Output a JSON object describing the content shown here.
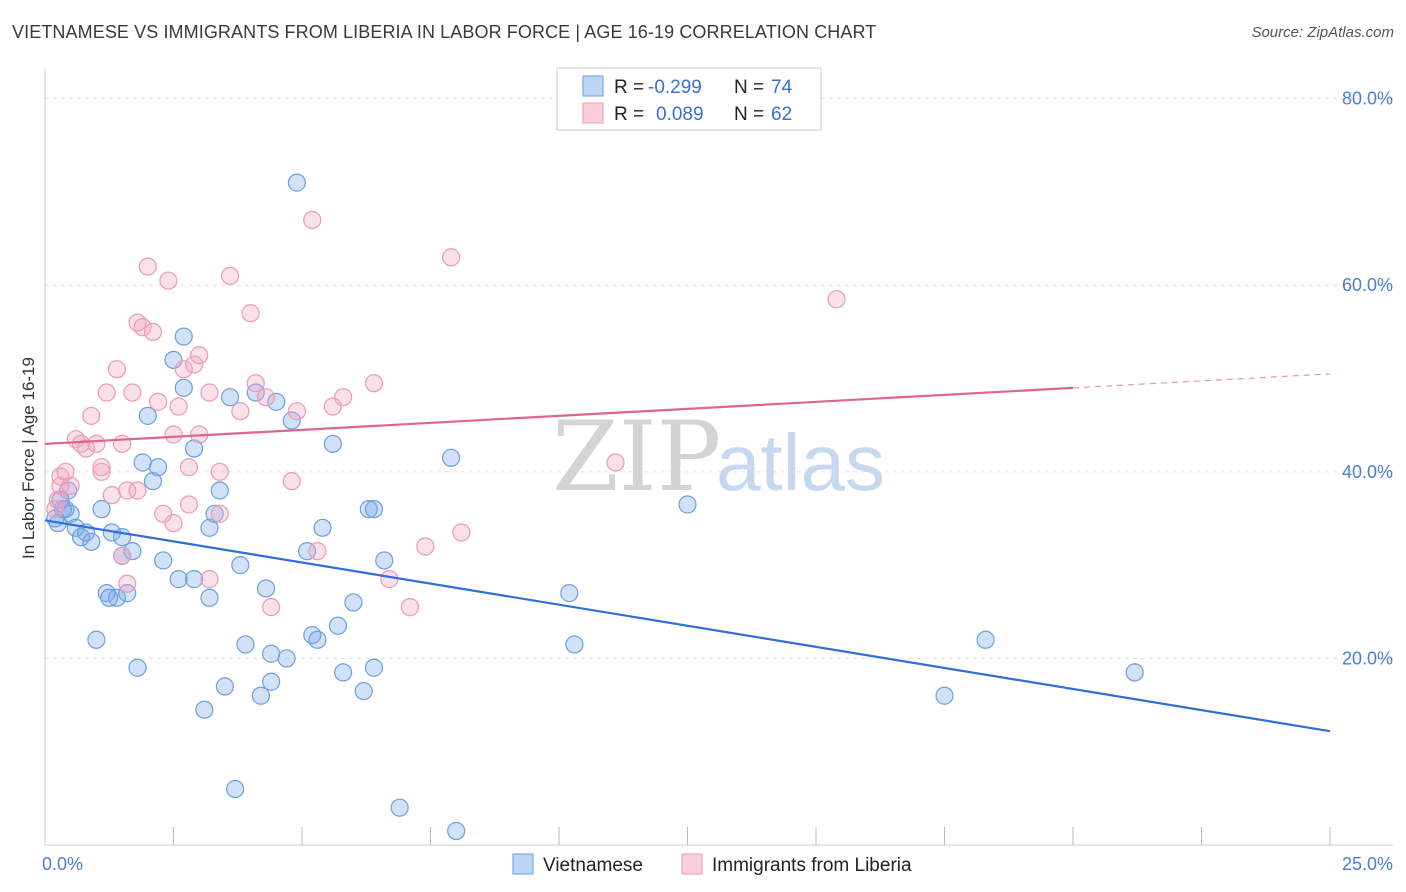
{
  "title": "VIETNAMESE VS IMMIGRANTS FROM LIBERIA IN LABOR FORCE | AGE 16-19 CORRELATION CHART",
  "source": "Source: ZipAtlas.com",
  "watermark": {
    "zip": "ZIP",
    "atlas": "atlas"
  },
  "colors": {
    "blue": "#7aaae8",
    "blue_line": "#2f6fd6",
    "pink": "#f1a7bf",
    "pink_line": "#e0648e",
    "axis_text": "#4a7fd0"
  },
  "legend": {
    "r_label": "R =",
    "n_label": "N =",
    "rows": [
      {
        "r": "-0.299",
        "n": "74"
      },
      {
        "r": "0.089",
        "n": "62"
      }
    ]
  },
  "chart_data": {
    "type": "scatter",
    "title": "VIETNAMESE VS IMMIGRANTS FROM LIBERIA IN LABOR FORCE | AGE 16-19 CORRELATION CHART",
    "xlabel": "",
    "ylabel": "In Labor Force | Age 16-19",
    "xlim": [
      0,
      25
    ],
    "ylim": [
      0,
      82
    ],
    "x_tick_labels": [
      "0.0%",
      "25.0%"
    ],
    "y_ticks": [
      20,
      40,
      60,
      80
    ],
    "y_tick_labels": [
      "20.0%",
      "40.0%",
      "60.0%",
      "80.0%"
    ],
    "grid": true,
    "legend_position": "top-center",
    "series": [
      {
        "name": "Vietnamese",
        "color": "#7aaae8",
        "points": [
          [
            0.2,
            35
          ],
          [
            0.3,
            37
          ],
          [
            0.4,
            36
          ],
          [
            0.5,
            35.5
          ],
          [
            0.6,
            34
          ],
          [
            0.7,
            33
          ],
          [
            0.8,
            33.5
          ],
          [
            0.9,
            32.5
          ],
          [
            1.0,
            22
          ],
          [
            1.1,
            36
          ],
          [
            1.2,
            27
          ],
          [
            1.3,
            33.5
          ],
          [
            1.4,
            26.5
          ],
          [
            1.5,
            31
          ],
          [
            1.5,
            33
          ],
          [
            1.6,
            27
          ],
          [
            1.7,
            31.5
          ],
          [
            1.8,
            19
          ],
          [
            1.9,
            41
          ],
          [
            2.0,
            46
          ],
          [
            2.1,
            39
          ],
          [
            2.2,
            40.5
          ],
          [
            2.3,
            30.5
          ],
          [
            2.5,
            52
          ],
          [
            2.6,
            28.5
          ],
          [
            2.7,
            49
          ],
          [
            2.7,
            54.5
          ],
          [
            2.9,
            28.5
          ],
          [
            2.9,
            42.5
          ],
          [
            3.1,
            14.5
          ],
          [
            3.2,
            34
          ],
          [
            3.2,
            26.5
          ],
          [
            3.3,
            35.5
          ],
          [
            3.4,
            38
          ],
          [
            3.5,
            17
          ],
          [
            3.6,
            48
          ],
          [
            3.7,
            6
          ],
          [
            3.8,
            30
          ],
          [
            3.9,
            21.5
          ],
          [
            4.1,
            48.5
          ],
          [
            4.2,
            16
          ],
          [
            4.3,
            27.5
          ],
          [
            4.4,
            20.5
          ],
          [
            4.4,
            17.5
          ],
          [
            4.5,
            47.5
          ],
          [
            4.7,
            20
          ],
          [
            4.8,
            45.5
          ],
          [
            4.9,
            71
          ],
          [
            5.1,
            31.5
          ],
          [
            5.2,
            22.5
          ],
          [
            5.3,
            22
          ],
          [
            5.4,
            34
          ],
          [
            5.6,
            43
          ],
          [
            5.7,
            23.5
          ],
          [
            5.8,
            18.5
          ],
          [
            6.0,
            26
          ],
          [
            6.2,
            16.5
          ],
          [
            6.3,
            36
          ],
          [
            6.4,
            36
          ],
          [
            6.4,
            19
          ],
          [
            6.6,
            30.5
          ],
          [
            6.9,
            4
          ],
          [
            7.9,
            41.5
          ],
          [
            8.0,
            1.5
          ],
          [
            10.2,
            27
          ],
          [
            10.3,
            21.5
          ],
          [
            12.5,
            36.5
          ],
          [
            17.5,
            16
          ],
          [
            18.3,
            22
          ],
          [
            21.2,
            18.5
          ],
          [
            0.25,
            34.5
          ],
          [
            0.45,
            38
          ],
          [
            0.35,
            36
          ],
          [
            1.25,
            26.5
          ]
        ]
      },
      {
        "name": "Immigrants from Liberia",
        "color": "#f1a7bf",
        "points": [
          [
            0.2,
            36
          ],
          [
            0.3,
            38.5
          ],
          [
            0.3,
            39.5
          ],
          [
            0.4,
            40
          ],
          [
            0.5,
            38.5
          ],
          [
            0.6,
            43.5
          ],
          [
            0.7,
            43
          ],
          [
            0.8,
            42.5
          ],
          [
            0.9,
            46
          ],
          [
            1.0,
            43
          ],
          [
            1.1,
            40
          ],
          [
            1.1,
            40.5
          ],
          [
            1.2,
            48.5
          ],
          [
            1.3,
            37.5
          ],
          [
            1.4,
            51
          ],
          [
            1.5,
            43
          ],
          [
            1.5,
            31
          ],
          [
            1.6,
            38
          ],
          [
            1.6,
            28
          ],
          [
            1.7,
            48.5
          ],
          [
            1.8,
            56
          ],
          [
            1.8,
            38
          ],
          [
            1.9,
            55.5
          ],
          [
            2.0,
            62
          ],
          [
            2.1,
            55
          ],
          [
            2.2,
            47.5
          ],
          [
            2.3,
            35.5
          ],
          [
            2.4,
            60.5
          ],
          [
            2.5,
            34.5
          ],
          [
            2.5,
            44
          ],
          [
            2.6,
            47
          ],
          [
            2.7,
            51
          ],
          [
            2.8,
            40.5
          ],
          [
            2.8,
            36.5
          ],
          [
            2.9,
            51.5
          ],
          [
            3.0,
            44
          ],
          [
            3.0,
            52.5
          ],
          [
            3.2,
            48.5
          ],
          [
            3.2,
            28.5
          ],
          [
            3.4,
            40
          ],
          [
            3.4,
            35.5
          ],
          [
            3.6,
            61
          ],
          [
            3.8,
            46.5
          ],
          [
            4.0,
            57
          ],
          [
            4.1,
            49.5
          ],
          [
            4.3,
            48
          ],
          [
            4.4,
            25.5
          ],
          [
            4.8,
            39
          ],
          [
            4.9,
            46.5
          ],
          [
            5.2,
            67
          ],
          [
            5.3,
            31.5
          ],
          [
            5.6,
            47
          ],
          [
            5.8,
            48
          ],
          [
            6.4,
            49.5
          ],
          [
            6.7,
            28.5
          ],
          [
            7.1,
            25.5
          ],
          [
            7.4,
            32
          ],
          [
            7.9,
            63
          ],
          [
            8.1,
            33.5
          ],
          [
            11.1,
            41
          ],
          [
            15.4,
            58.5
          ],
          [
            0.25,
            37
          ]
        ]
      }
    ],
    "trend_lines": [
      {
        "series": "Vietnamese",
        "x": [
          0,
          25
        ],
        "y": [
          34.8,
          12.2
        ]
      },
      {
        "series": "Immigrants from Liberia",
        "x": [
          0,
          20
        ],
        "y": [
          43,
          49
        ],
        "dashed_extension": {
          "x": [
            20,
            25
          ],
          "y": [
            49,
            50.5
          ]
        }
      }
    ]
  }
}
